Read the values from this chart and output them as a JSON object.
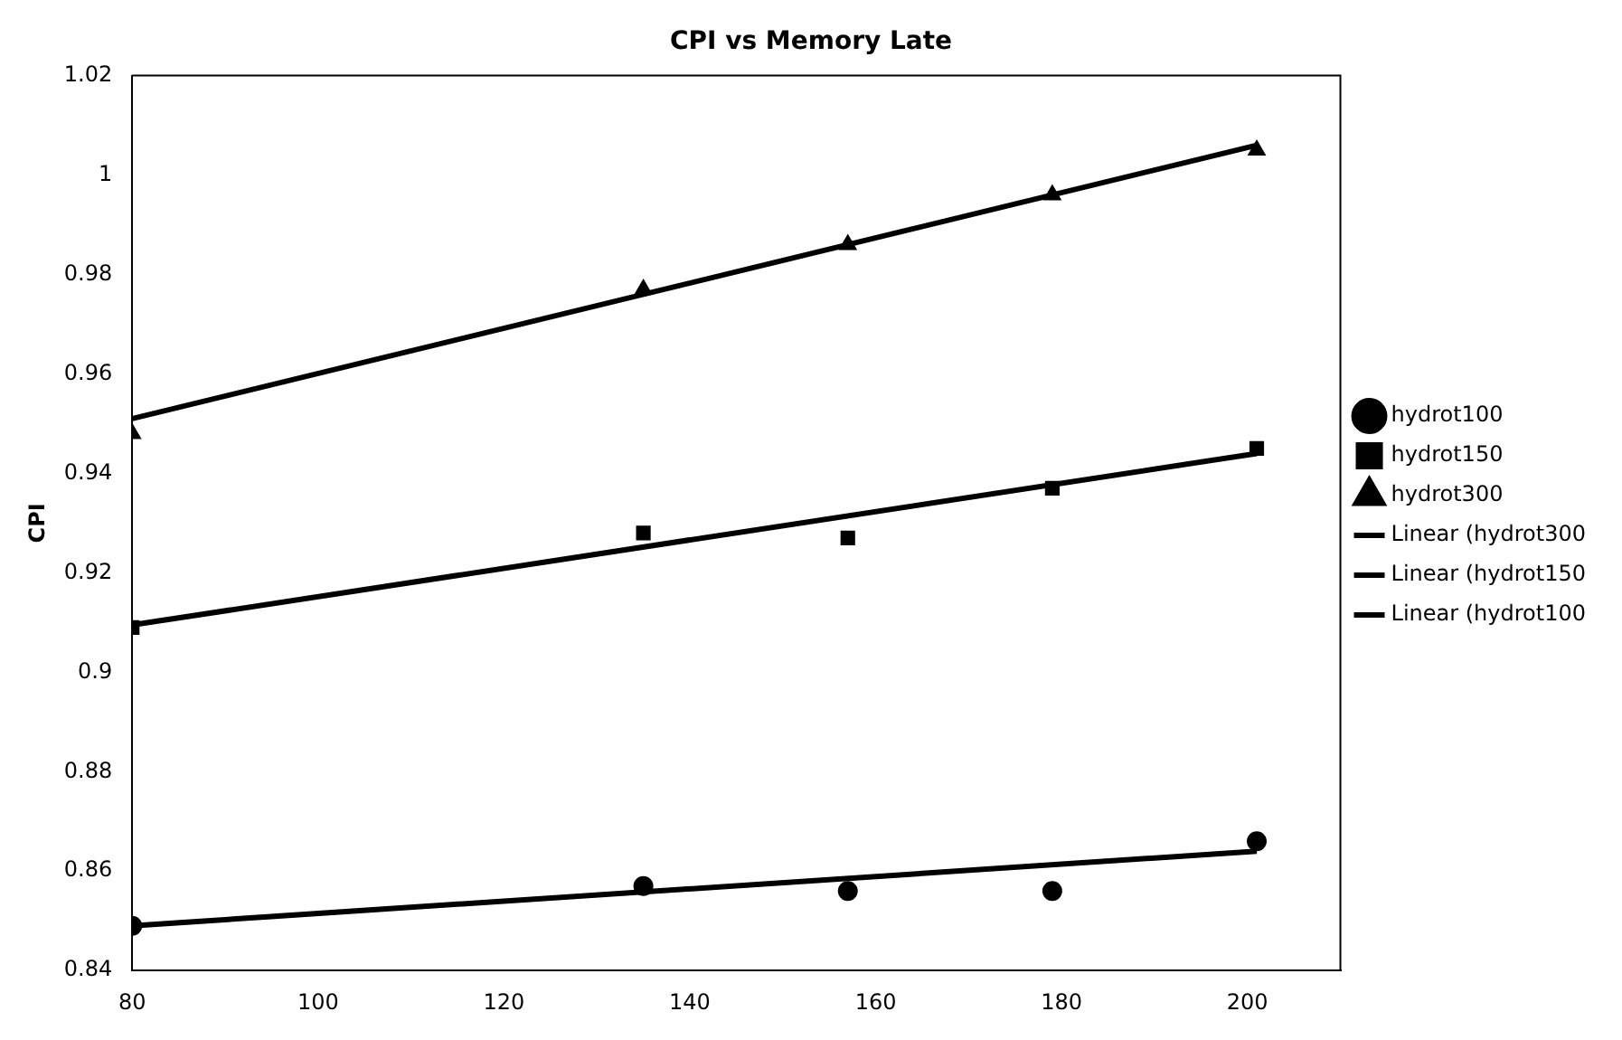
{
  "chart_data": {
    "type": "scatter",
    "title": "CPI vs Memory Late",
    "ylabel": "CPI",
    "xlim": [
      80,
      210
    ],
    "xticks": [
      80,
      100,
      120,
      140,
      160,
      180,
      200
    ],
    "ylim": [
      0.84,
      1.02
    ],
    "yticks": [
      0.84,
      0.86,
      0.88,
      0.9,
      0.92,
      0.94,
      0.96,
      0.98,
      1,
      1.02
    ],
    "grid": false,
    "legend": "right",
    "series": [
      {
        "name": "hydrot100",
        "color": "#000000",
        "marker": "circle",
        "x": [
          80,
          135,
          157,
          179,
          201
        ],
        "values": [
          0.849,
          0.857,
          0.856,
          0.856,
          0.866
        ]
      },
      {
        "name": "hydrot150",
        "color": "#000000",
        "marker": "square",
        "x": [
          80,
          135,
          157,
          179,
          201
        ],
        "values": [
          0.909,
          0.928,
          0.927,
          0.937,
          0.945
        ]
      },
      {
        "name": "hydrot300",
        "color": "#000000",
        "marker": "triangle",
        "x": [
          80,
          135,
          157,
          179,
          201
        ],
        "values": [
          0.948,
          0.977,
          0.986,
          0.996,
          1.005
        ]
      },
      {
        "name": "Linear (hydrot300",
        "type": "line",
        "color": "#000000",
        "marker": "none",
        "x": [
          80,
          201
        ],
        "values": [
          0.951,
          1.006
        ]
      },
      {
        "name": "Linear (hydrot150",
        "type": "line",
        "color": "#000000",
        "marker": "none",
        "x": [
          80,
          201
        ],
        "values": [
          0.9095,
          0.944
        ]
      },
      {
        "name": "Linear (hydrot100",
        "type": "line",
        "color": "#000000",
        "marker": "none",
        "x": [
          80,
          201
        ],
        "values": [
          0.849,
          0.864
        ]
      }
    ]
  }
}
